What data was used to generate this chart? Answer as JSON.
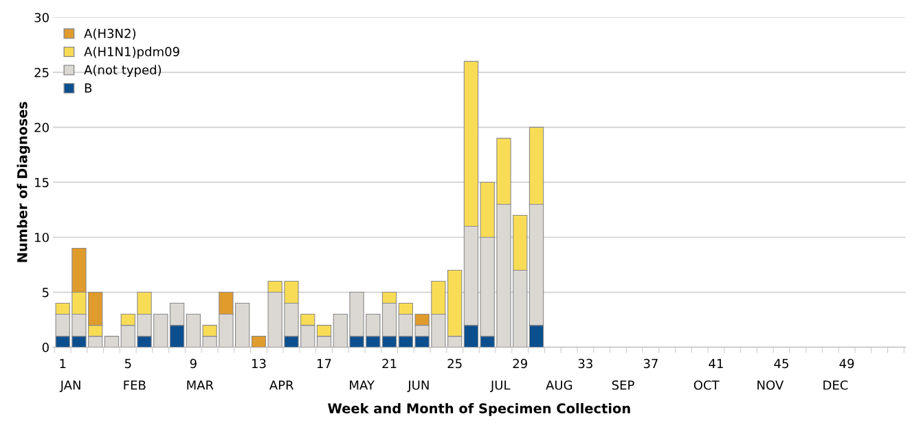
{
  "chart_data": {
    "type": "bar",
    "stacked": true,
    "xlabel": "Week and Month of Specimen Collection",
    "ylabel": "Number of Diagnoses",
    "categories": [
      "1",
      null,
      null,
      null,
      "5",
      null,
      null,
      null,
      "9",
      null,
      null,
      null,
      "13",
      null,
      null,
      null,
      "17",
      null,
      null,
      null,
      "21",
      null,
      null,
      null,
      "25",
      null,
      null,
      null,
      "29",
      null,
      null,
      null,
      "33",
      null,
      null,
      null,
      "37",
      null,
      null,
      null,
      "41",
      null,
      null,
      null,
      "45",
      null,
      null,
      null,
      "49",
      null,
      null,
      null
    ],
    "series": [
      {
        "name": "B",
        "color": "#0b4f8f",
        "values": [
          1,
          1,
          0,
          0,
          0,
          1,
          0,
          2,
          0,
          0,
          0,
          0,
          0,
          0,
          1,
          0,
          0,
          0,
          1,
          1,
          1,
          1,
          1,
          0,
          0,
          2,
          1,
          0,
          0,
          2,
          0,
          0,
          0,
          0,
          0,
          0,
          0,
          0,
          0,
          0,
          0,
          0,
          0,
          0,
          0,
          0,
          0,
          0,
          0,
          0,
          0,
          0
        ]
      },
      {
        "name": "A(not typed)",
        "color": "#dbd7d2",
        "values": [
          2,
          2,
          1,
          1,
          2,
          2,
          3,
          2,
          3,
          1,
          3,
          4,
          0,
          5,
          3,
          2,
          1,
          3,
          4,
          2,
          3,
          2,
          1,
          3,
          1,
          9,
          9,
          13,
          7,
          11,
          0,
          0,
          0,
          0,
          0,
          0,
          0,
          0,
          0,
          0,
          0,
          0,
          0,
          0,
          0,
          0,
          0,
          0,
          0,
          0,
          0,
          0
        ]
      },
      {
        "name": "A(H1N1)pdm09",
        "color": "#f9dc55",
        "values": [
          1,
          2,
          1,
          0,
          1,
          2,
          0,
          0,
          0,
          1,
          0,
          0,
          0,
          1,
          2,
          1,
          1,
          0,
          0,
          0,
          1,
          1,
          0,
          3,
          6,
          15,
          5,
          6,
          5,
          7,
          0,
          0,
          0,
          0,
          0,
          0,
          0,
          0,
          0,
          0,
          0,
          0,
          0,
          0,
          0,
          0,
          0,
          0,
          0,
          0,
          0,
          0
        ]
      },
      {
        "name": "A(H3N2)",
        "color": "#e09b2d",
        "values": [
          0,
          4,
          3,
          0,
          0,
          0,
          0,
          0,
          0,
          0,
          2,
          0,
          1,
          0,
          0,
          0,
          0,
          0,
          0,
          0,
          0,
          0,
          1,
          0,
          0,
          0,
          0,
          0,
          0,
          0,
          0,
          0,
          0,
          0,
          0,
          0,
          0,
          0,
          0,
          0,
          0,
          0,
          0,
          0,
          0,
          0,
          0,
          0,
          0,
          0,
          0,
          0
        ]
      }
    ],
    "annotations": [
      "JAN",
      "FEB",
      "MAR",
      "APR",
      "MAY",
      "JUN",
      "JUL",
      "AUG",
      "SEP",
      "OCT",
      "NOV",
      "DEC"
    ],
    "ylim": [
      0,
      30
    ],
    "yticks": [
      0,
      5,
      10,
      15,
      20,
      25,
      30
    ],
    "grid": "y",
    "legend": "top left"
  }
}
